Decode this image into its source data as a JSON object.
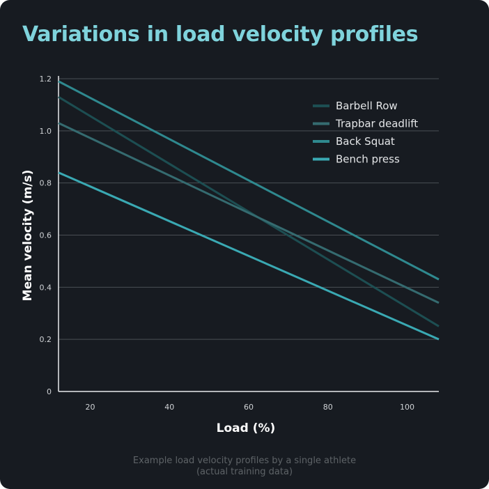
{
  "chart_data": {
    "type": "line",
    "title": "Variations in load velocity profiles",
    "xlabel": "Load (%)",
    "ylabel": "Mean velocity (m/s)",
    "xlim": [
      12,
      108
    ],
    "ylim": [
      0,
      1.2
    ],
    "xticks": [
      20,
      40,
      60,
      80,
      100
    ],
    "yticks": [
      0,
      0.2,
      0.4,
      0.6,
      0.8,
      1.0,
      1.2
    ],
    "ytick_labels": [
      "0",
      "0.2",
      "0.4",
      "0.6",
      "0.8",
      "1.0",
      "1.2"
    ],
    "grid": true,
    "legend_position": "top-right",
    "series": [
      {
        "name": "Barbell Row",
        "color": "#1d4e52",
        "x": [
          12,
          108
        ],
        "y": [
          1.13,
          0.25
        ]
      },
      {
        "name": "Trapbar deadlift",
        "color": "#356b70",
        "x": [
          12,
          108
        ],
        "y": [
          1.03,
          0.34
        ]
      },
      {
        "name": "Back Squat",
        "color": "#2f898f",
        "x": [
          12,
          108
        ],
        "y": [
          1.19,
          0.43
        ]
      },
      {
        "name": "Bench press",
        "color": "#3aa9b3",
        "x": [
          12,
          108
        ],
        "y": [
          0.84,
          0.2
        ]
      }
    ],
    "caption": [
      "Example load velocity profiles by a single athlete",
      "(actual training data)"
    ]
  }
}
